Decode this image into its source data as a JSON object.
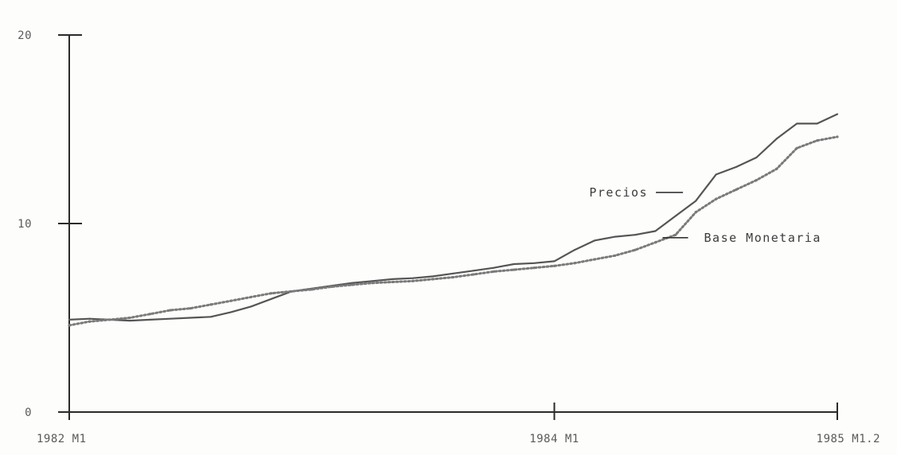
{
  "chart_data": {
    "type": "line",
    "title": "",
    "xlabel": "",
    "ylabel": "",
    "ylim": [
      0,
      20
    ],
    "xlim": [
      0,
      38
    ],
    "grid": false,
    "y_ticks": [
      {
        "value": 0,
        "label": "0"
      },
      {
        "value": 10,
        "label": "10"
      },
      {
        "value": 20,
        "label": "20"
      }
    ],
    "x_ticks": [
      {
        "value": 0,
        "label": "1982 M1"
      },
      {
        "value": 24,
        "label": "1984 M1"
      },
      {
        "value": 38,
        "label": "1985 M1.2"
      }
    ],
    "annotations": [
      {
        "text": "Precios",
        "series": "Precios",
        "position": "left"
      },
      {
        "text": "Base Monetaria",
        "series": "Base Monetaria",
        "position": "right"
      }
    ],
    "series": [
      {
        "name": "Precios",
        "color": "#555555",
        "style": "solid",
        "x": [
          0,
          1,
          2,
          3,
          4,
          5,
          6,
          7,
          8,
          9,
          10,
          11,
          12,
          13,
          14,
          15,
          16,
          17,
          18,
          19,
          20,
          21,
          22,
          23,
          24,
          25,
          26,
          27,
          28,
          29,
          30,
          31,
          32,
          33,
          34,
          35,
          36,
          37,
          38
        ],
        "values": [
          4.9,
          4.95,
          4.9,
          4.85,
          4.9,
          4.95,
          5.0,
          5.05,
          5.3,
          5.6,
          6.0,
          6.4,
          6.55,
          6.7,
          6.85,
          6.95,
          7.05,
          7.1,
          7.2,
          7.35,
          7.5,
          7.65,
          7.85,
          7.9,
          8.0,
          8.6,
          9.1,
          9.3,
          9.4,
          9.6,
          10.4,
          11.2,
          12.6,
          13.0,
          13.5,
          14.5,
          15.3,
          15.3,
          15.8
        ]
      },
      {
        "name": "Base Monetaria",
        "color": "#7a7a7a",
        "style": "dotted",
        "x": [
          0,
          1,
          2,
          3,
          4,
          5,
          6,
          7,
          8,
          9,
          10,
          11,
          12,
          13,
          14,
          15,
          16,
          17,
          18,
          19,
          20,
          21,
          22,
          23,
          24,
          25,
          26,
          27,
          28,
          29,
          30,
          31,
          32,
          33,
          34,
          35,
          36,
          37,
          38
        ],
        "values": [
          4.6,
          4.8,
          4.9,
          5.0,
          5.2,
          5.4,
          5.5,
          5.7,
          5.9,
          6.1,
          6.3,
          6.4,
          6.5,
          6.65,
          6.75,
          6.85,
          6.9,
          6.95,
          7.05,
          7.15,
          7.3,
          7.45,
          7.55,
          7.65,
          7.75,
          7.9,
          8.1,
          8.3,
          8.6,
          9.0,
          9.4,
          10.6,
          11.3,
          11.8,
          12.3,
          12.9,
          14.0,
          14.4,
          14.6
        ]
      }
    ]
  }
}
